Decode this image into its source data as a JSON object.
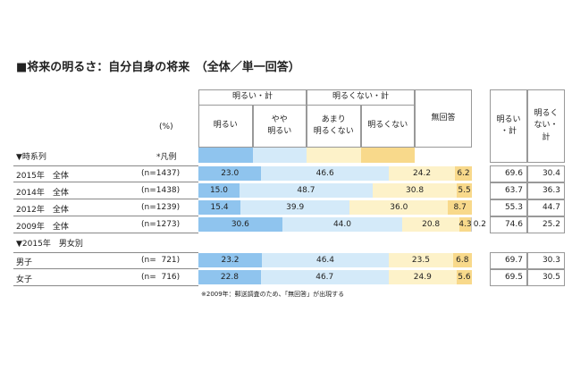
{
  "title": "■将来の明るさ：自分自身の将来　（全体／単一回答）",
  "header": {
    "unit": "(%)",
    "legend_label": "*凡例",
    "group_positive": "明るい・計",
    "group_negative": "明るくない・計"
  },
  "sections": [
    "▼時系列",
    "▼2015年　男女別"
  ],
  "chart_data": {
    "type": "stacked-bar",
    "xlim": [
      0,
      100
    ],
    "categories": [
      "2015年　全体",
      "2014年　全体",
      "2012年　全体",
      "2009年　全体",
      "男子",
      "女子"
    ],
    "sample_sizes": [
      "(n=1437)",
      "(n=1438)",
      "(n=1239)",
      "(n=1273)",
      "(n=  721)",
      "(n=  716)"
    ],
    "series": [
      {
        "name": "明るい",
        "color": "#8fc4ee",
        "values": [
          23.0,
          15.0,
          15.4,
          30.6,
          23.2,
          22.8
        ],
        "value_labels": [
          "23.0",
          "15.0",
          "15.4",
          "30.6",
          "23.2",
          "22.8"
        ]
      },
      {
        "name": "やや\n明るい",
        "color": "#d4eaf9",
        "values": [
          46.6,
          48.7,
          39.9,
          44.0,
          46.4,
          46.7
        ],
        "value_labels": [
          "46.6",
          "48.7",
          "39.9",
          "44.0",
          "46.4",
          "46.7"
        ]
      },
      {
        "name": "あまり\n明るくない",
        "color": "#fdf2c9",
        "values": [
          24.2,
          30.8,
          36.0,
          20.8,
          23.5,
          24.9
        ],
        "value_labels": [
          "24.2",
          "30.8",
          "36.0",
          "20.8",
          "23.5",
          "24.9"
        ]
      },
      {
        "name": "明るくない",
        "color": "#f8d98b",
        "values": [
          6.2,
          5.5,
          8.7,
          4.3,
          6.8,
          5.6
        ],
        "value_labels": [
          "6.2",
          "5.5",
          "8.7",
          "4.3",
          "6.8",
          "5.6"
        ]
      },
      {
        "name": "無回答",
        "color": "#c9c9c9",
        "values": [
          null,
          null,
          null,
          0.2,
          null,
          null
        ],
        "value_labels": [
          null,
          null,
          null,
          "0.2",
          null,
          null
        ]
      }
    ]
  },
  "summary": {
    "headers": [
      "明るい\n・計",
      "明るく\nない・\n計"
    ],
    "rows": [
      [
        "69.6",
        "30.4"
      ],
      [
        "63.7",
        "36.3"
      ],
      [
        "55.3",
        "44.7"
      ],
      [
        "74.6",
        "25.2"
      ],
      [
        "69.7",
        "30.3"
      ],
      [
        "69.5",
        "30.5"
      ]
    ]
  },
  "note": "※2009年：郵送調査のため、「無回答」が出現する"
}
